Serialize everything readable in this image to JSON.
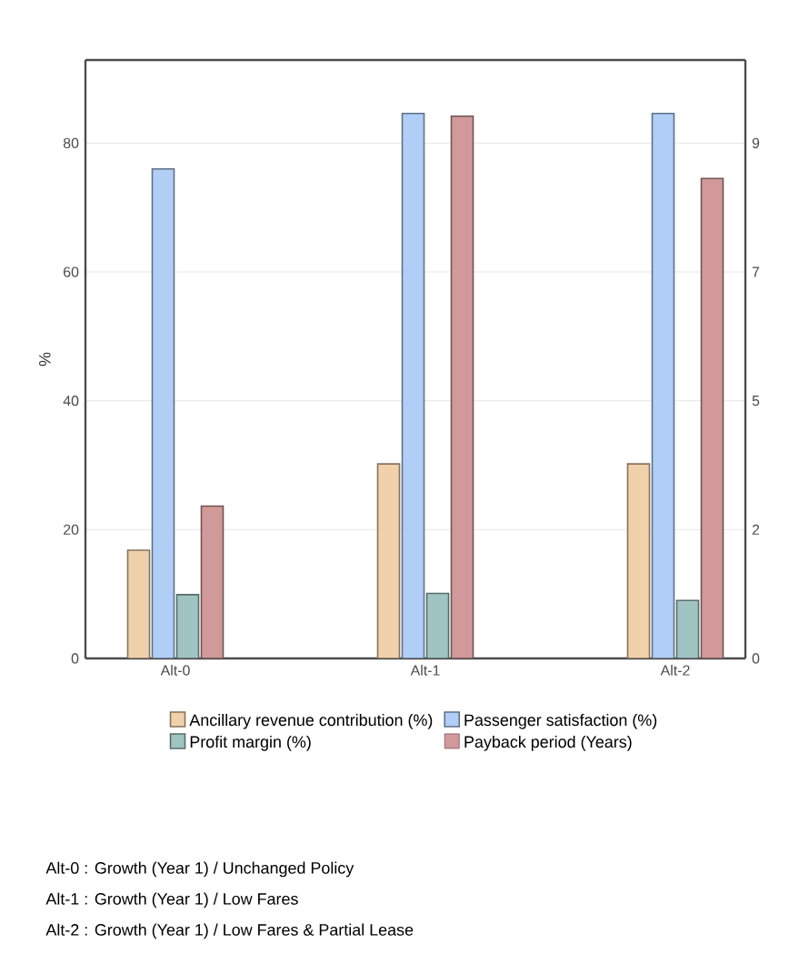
{
  "chart_data": {
    "type": "bar",
    "ylabel": "%",
    "categories": [
      "Alt-0",
      "Alt-1",
      "Alt-2"
    ],
    "series": [
      {
        "name": "Ancillary revenue contribution (%)",
        "color": "#f0d1aa",
        "values": [
          16.8,
          30.2,
          30.2
        ]
      },
      {
        "name": "Passenger satisfaction (%)",
        "color": "#b0cef6",
        "values": [
          76.0,
          84.6,
          84.6
        ]
      },
      {
        "name": "Profit margin (%)",
        "color": "#9fc4c2",
        "values": [
          9.9,
          10.1,
          9.0
        ]
      },
      {
        "name": "Payback period (Years)",
        "color": "#d19999",
        "axis": "y2",
        "values": [
          2.66,
          9.47,
          8.38
        ]
      }
    ],
    "ylim": [
      0,
      92.9
    ],
    "yticks": [
      0,
      20,
      40,
      60,
      80
    ],
    "y2lim": [
      0,
      10.45
    ],
    "y2ticks": [
      0,
      {
        "value": 2.25,
        "label": "2"
      },
      {
        "value": 4.5,
        "label": "5"
      },
      {
        "value": 6.75,
        "label": "7"
      },
      {
        "value": 9,
        "label": "9"
      }
    ],
    "grid": "y",
    "legend": "bottom",
    "annotations": [
      "Alt-0 : Growth (Year 1) / Unchanged Policy",
      "Alt-1 : Growth (Year 1) / Low Fares",
      "Alt-2 : Growth (Year 1) / Low Fares & Partial Lease"
    ]
  }
}
